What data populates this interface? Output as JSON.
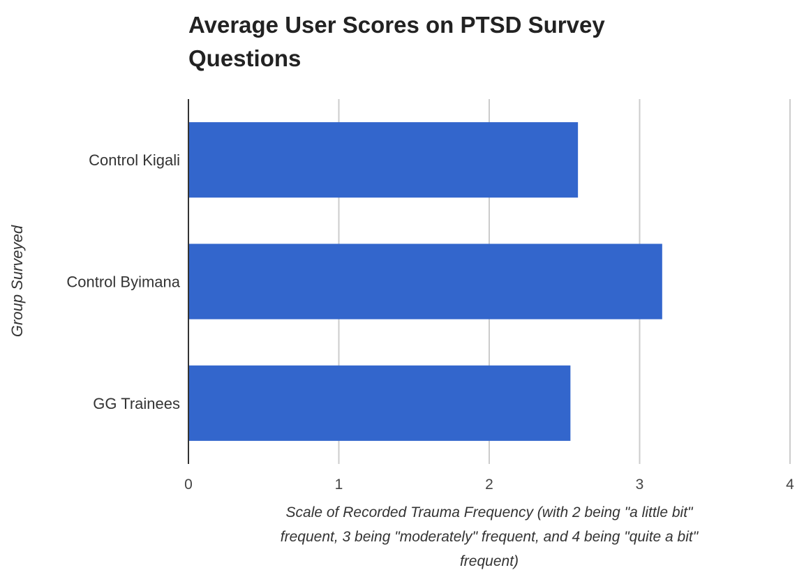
{
  "chart_data": {
    "type": "bar",
    "orientation": "horizontal",
    "title_lines": [
      "Average User Scores on PTSD Survey",
      "Questions"
    ],
    "ylabel": "Group Surveyed",
    "xlabel_lines": [
      "Scale of Recorded Trauma Frequency (with 2 being \"a little bit\"",
      "frequent, 3 being \"moderately\" frequent, and 4 being \"quite a bit\"",
      "frequent)"
    ],
    "categories": [
      "Control Kigali",
      "Control Byimana",
      "GG Trainees"
    ],
    "values": [
      2.59,
      3.15,
      2.54
    ],
    "xlim": [
      0,
      4
    ],
    "xticks": [
      "0",
      "1",
      "2",
      "3",
      "4"
    ],
    "bar_color": "#3366cc",
    "grid": true,
    "legend": "none"
  }
}
